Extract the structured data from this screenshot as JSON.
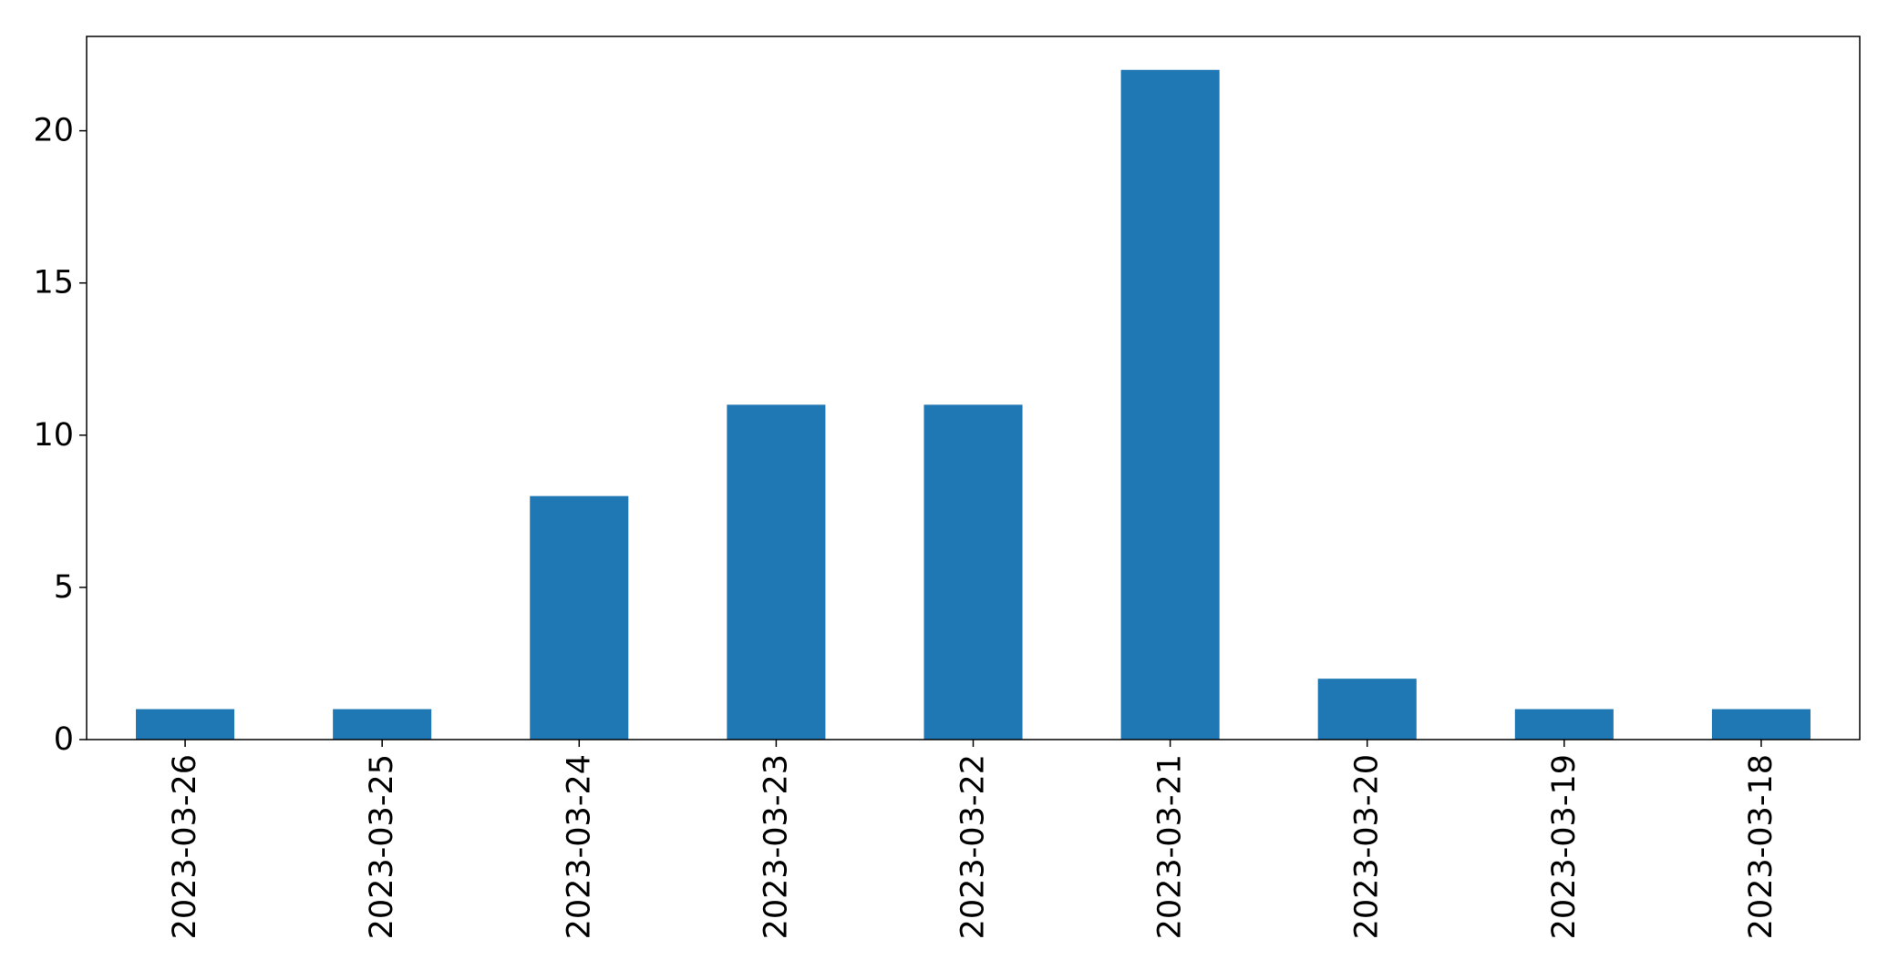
{
  "chart_data": {
    "type": "bar",
    "title": "",
    "xlabel": "",
    "ylabel": "",
    "categories": [
      "2023-03-26",
      "2023-03-25",
      "2023-03-24",
      "2023-03-23",
      "2023-03-22",
      "2023-03-21",
      "2023-03-20",
      "2023-03-19",
      "2023-03-18"
    ],
    "values": [
      1,
      1,
      8,
      11,
      11,
      22,
      2,
      1,
      1
    ],
    "ylim": [
      0,
      23.1
    ],
    "yticks": [
      0,
      5,
      10,
      15,
      20
    ],
    "ytick_labels": [
      "0",
      "5",
      "10",
      "15",
      "20"
    ],
    "grid": false,
    "legend": "none",
    "colors": {
      "bar": "#1f77b4",
      "axis": "#000000",
      "background": "#ffffff"
    }
  }
}
